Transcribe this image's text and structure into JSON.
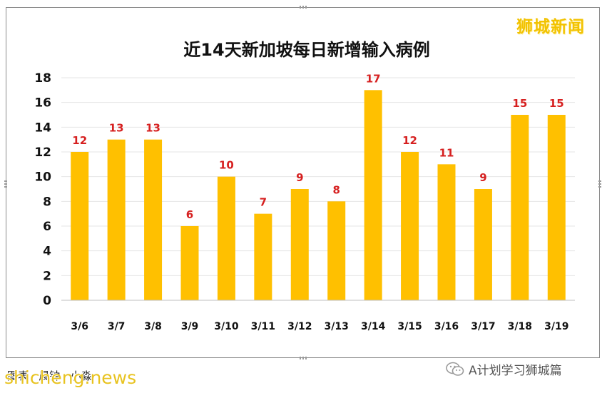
{
  "watermark_brand": "狮城新闻",
  "caption": "图表 · 晨钟 · 小淼",
  "site_mark": "shicheng.news",
  "wechat_account": "A计划学习狮城篇",
  "chart_data": {
    "type": "bar",
    "title": "近14天新加坡每日新增输入病例",
    "categories": [
      "3/6",
      "3/7",
      "3/8",
      "3/9",
      "3/10",
      "3/11",
      "3/12",
      "3/13",
      "3/14",
      "3/15",
      "3/16",
      "3/17",
      "3/18",
      "3/19"
    ],
    "values": [
      12,
      13,
      13,
      6,
      10,
      7,
      9,
      8,
      17,
      12,
      11,
      9,
      15,
      15
    ],
    "ylim": [
      0,
      18
    ],
    "yticks": [
      0,
      2,
      4,
      6,
      8,
      10,
      12,
      14,
      16,
      18
    ],
    "xlabel": "",
    "ylabel": "",
    "grid": true,
    "legend": "none",
    "bar_color": "#ffc000",
    "label_color": "#d62020"
  }
}
